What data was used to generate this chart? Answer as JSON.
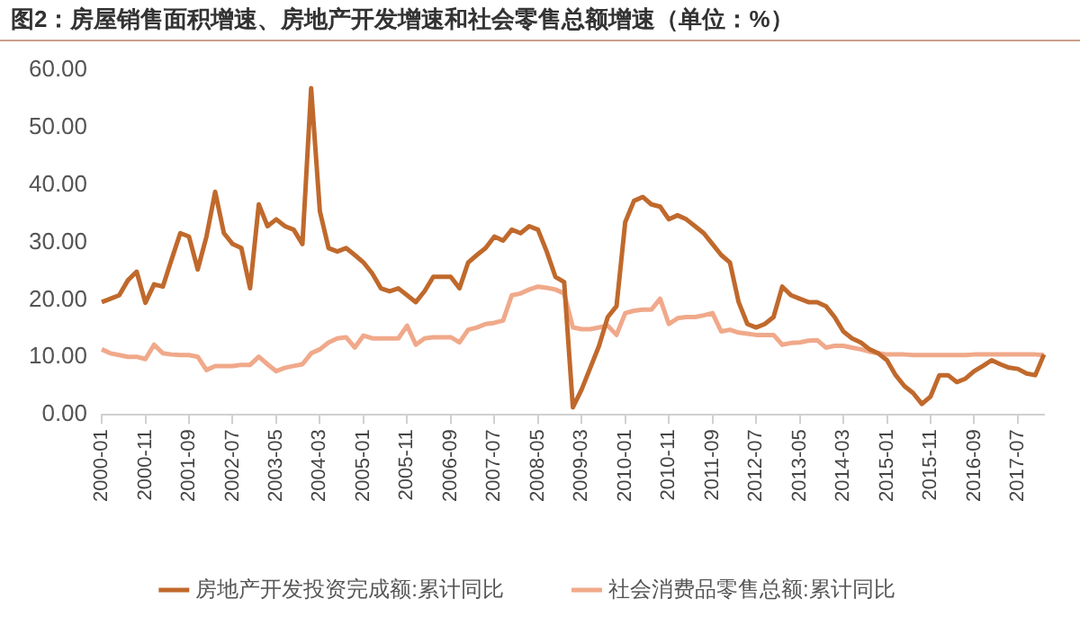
{
  "chart_data": {
    "type": "line",
    "title": "图2：房屋销售面积增速、房地产开发增速和社会零售总额增速（单位：%）",
    "categories": [
      "2000-01",
      null,
      null,
      null,
      null,
      "2000-11",
      null,
      null,
      null,
      null,
      "2001-09",
      null,
      null,
      null,
      null,
      "2002-07",
      null,
      null,
      null,
      null,
      "2003-05",
      null,
      null,
      null,
      null,
      "2004-03",
      null,
      null,
      null,
      null,
      "2005-01",
      null,
      null,
      null,
      null,
      "2005-11",
      null,
      null,
      null,
      null,
      "2006-09",
      null,
      null,
      null,
      null,
      "2007-07",
      null,
      null,
      null,
      null,
      "2008-05",
      null,
      null,
      null,
      null,
      "2009-03",
      null,
      null,
      null,
      null,
      "2010-01",
      null,
      null,
      null,
      null,
      "2010-11",
      null,
      null,
      null,
      null,
      "2011-09",
      null,
      null,
      null,
      null,
      "2012-07",
      null,
      null,
      null,
      null,
      "2013-05",
      null,
      null,
      null,
      null,
      "2014-03",
      null,
      null,
      null,
      null,
      "2015-01",
      null,
      null,
      null,
      null,
      "2015-11",
      null,
      null,
      null,
      null,
      "2016-09",
      null,
      null,
      null,
      null,
      "2017-07",
      null,
      null,
      null
    ],
    "series": [
      {
        "name": "房地产开发投资完成额:累计同比",
        "color": "#c0692c",
        "values": [
          19.6,
          20.2,
          20.8,
          23.4,
          24.9,
          19.5,
          22.7,
          22.3,
          27,
          31.6,
          31,
          25.3,
          31,
          38.8,
          31.6,
          29.7,
          29,
          22,
          36.6,
          32.8,
          34,
          32.8,
          32.2,
          29.7,
          56.8,
          35.4,
          29,
          28.4,
          29,
          27.8,
          26.5,
          24.6,
          22,
          21.5,
          22,
          20.8,
          19.6,
          21.5,
          24,
          24,
          24,
          22,
          26.5,
          27.8,
          29,
          31,
          30.3,
          32.2,
          31.6,
          32.8,
          32.2,
          28.4,
          24,
          23.1,
          1.3,
          4.4,
          8.2,
          12,
          17,
          18.9,
          33.5,
          37.2,
          37.9,
          36.6,
          36.2,
          34,
          34.7,
          34,
          32.8,
          31.6,
          29.7,
          27.8,
          26.5,
          19.6,
          15.8,
          15.2,
          15.8,
          17,
          22.3,
          20.8,
          20.2,
          19.6,
          19.6,
          18.9,
          17,
          14.5,
          13.3,
          12.6,
          11.4,
          10.7,
          9.5,
          6.9,
          5,
          3.8,
          1.9,
          3.2,
          6.9,
          6.9,
          5.7,
          6.3,
          7.6,
          8.5,
          9.5,
          8.8,
          8.2,
          8,
          7.2,
          6.9,
          10.5
        ]
      },
      {
        "name": "社会消费品零售总额:累计同比",
        "color": "#f0a98a",
        "values": [
          11.4,
          10.7,
          10.4,
          10.1,
          10.1,
          9.7,
          12.2,
          10.7,
          10.5,
          10.4,
          10.4,
          10.1,
          7.8,
          8.5,
          8.5,
          8.5,
          8.7,
          8.7,
          10.1,
          8.8,
          7.6,
          8.2,
          8.5,
          8.8,
          10.7,
          11.4,
          12.6,
          13.3,
          13.5,
          11.7,
          13.8,
          13.3,
          13.3,
          13.3,
          13.3,
          15.5,
          12.2,
          13.3,
          13.5,
          13.5,
          13.5,
          12.6,
          14.8,
          15.2,
          15.8,
          16,
          16.4,
          20.8,
          21.1,
          21.8,
          22.3,
          22.1,
          21.8,
          21.1,
          15.2,
          14.9,
          14.9,
          15.2,
          15.5,
          13.9,
          17.7,
          18.1,
          18.3,
          18.3,
          20.2,
          15.8,
          16.8,
          17,
          17,
          17.3,
          17.7,
          14.5,
          14.8,
          14.3,
          14.1,
          13.9,
          13.9,
          13.9,
          12.2,
          12.5,
          12.6,
          12.9,
          13,
          11.7,
          12,
          12,
          11.7,
          11.4,
          11,
          10.7,
          10.5,
          10.5,
          10.5,
          10.4,
          10.4,
          10.4,
          10.4,
          10.4,
          10.4,
          10.4,
          10.5,
          10.5,
          10.5,
          10.5,
          10.5,
          10.5,
          10.5,
          10.5,
          10.4
        ]
      }
    ],
    "ylim": [
      0,
      60
    ],
    "yticks": [
      {
        "value": 0,
        "label": "0.00"
      },
      {
        "value": 10,
        "label": "10.00"
      },
      {
        "value": 20,
        "label": "20.00"
      },
      {
        "value": 30,
        "label": "30.00"
      },
      {
        "value": 40,
        "label": "40.00"
      },
      {
        "value": 50,
        "label": "50.00"
      },
      {
        "value": 60,
        "label": "60.00"
      }
    ],
    "legend": "bottom"
  }
}
